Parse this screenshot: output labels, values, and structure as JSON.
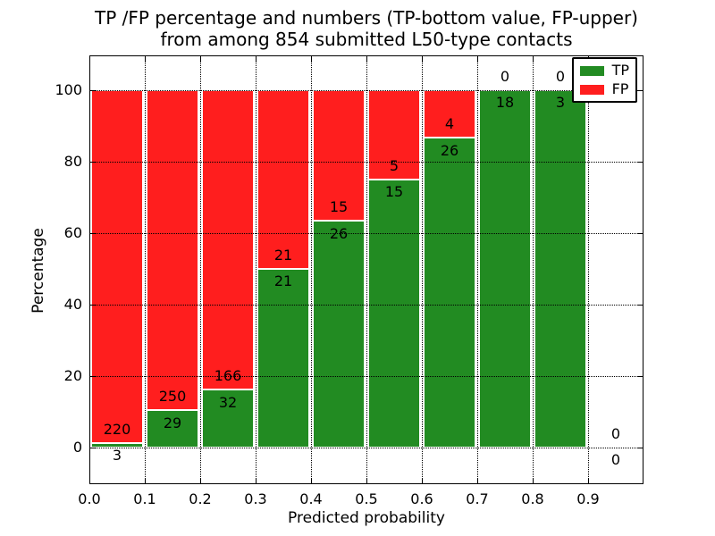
{
  "figure": {
    "title_line1": "TP /FP percentage and numbers (TP-bottom value, FP-upper)",
    "title_line2": "from among 854 submitted L50-type contacts"
  },
  "chart_data": {
    "type": "bar",
    "subtype": "stacked-percentage",
    "title": "TP /FP percentage and numbers (TP-bottom value, FP-upper) from among 854 submitted L50-type contacts",
    "xlabel": "Predicted probability",
    "ylabel": "Percentage",
    "total_submitted": 854,
    "xlim": [
      0.0,
      1.0
    ],
    "ylim_percent": [
      -10,
      109
    ],
    "x_tick_labels": [
      "0.0",
      "0.1",
      "0.2",
      "0.3",
      "0.4",
      "0.5",
      "0.6",
      "0.7",
      "0.8",
      "0.9"
    ],
    "y_tick_values": [
      0,
      20,
      40,
      60,
      80,
      100
    ],
    "grid": "dotted-black",
    "legend": {
      "position": "upper-right",
      "entries": [
        {
          "label": "TP",
          "color": "#228b22"
        },
        {
          "label": "FP",
          "color": "#ff1e1e"
        }
      ]
    },
    "categories": [
      "0.0-0.1",
      "0.1-0.2",
      "0.2-0.3",
      "0.3-0.4",
      "0.4-0.5",
      "0.5-0.6",
      "0.6-0.7",
      "0.7-0.8",
      "0.8-0.9",
      "0.9-1.0"
    ],
    "series": [
      {
        "name": "TP",
        "counts": [
          3,
          29,
          32,
          21,
          26,
          15,
          26,
          18,
          3,
          0
        ],
        "percent": [
          1.3,
          10.4,
          16.2,
          50.0,
          63.4,
          75.0,
          86.7,
          100.0,
          100.0,
          0.0
        ]
      },
      {
        "name": "FP",
        "counts": [
          220,
          250,
          166,
          21,
          15,
          5,
          4,
          0,
          0,
          0
        ],
        "percent": [
          98.7,
          89.6,
          83.8,
          50.0,
          36.6,
          25.0,
          13.3,
          0.0,
          0.0,
          0.0
        ]
      }
    ]
  },
  "colors": {
    "tp_green": "#228b22",
    "fp_red": "#ff1e1e",
    "axis_black": "#000000",
    "background": "#ffffff"
  }
}
